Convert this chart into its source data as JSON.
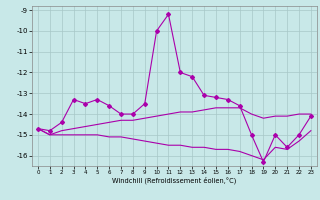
{
  "xlabel": "Windchill (Refroidissement éolien,°C)",
  "x": [
    0,
    1,
    2,
    3,
    4,
    5,
    6,
    7,
    8,
    9,
    10,
    11,
    12,
    13,
    14,
    15,
    16,
    17,
    18,
    19,
    20,
    21,
    22,
    23
  ],
  "line1": [
    -14.7,
    -14.8,
    -14.4,
    -13.3,
    -13.5,
    -13.3,
    -13.6,
    -14.0,
    -14.0,
    -13.5,
    -10.0,
    -9.2,
    -12.0,
    -12.2,
    -13.1,
    -13.2,
    -13.3,
    -13.6,
    -15.0,
    -16.3,
    -15.0,
    -15.6,
    -15.0,
    -14.1
  ],
  "line2": [
    -14.7,
    -15.0,
    -14.8,
    -14.7,
    -14.6,
    -14.5,
    -14.4,
    -14.3,
    -14.3,
    -14.2,
    -14.1,
    -14.0,
    -13.9,
    -13.9,
    -13.8,
    -13.7,
    -13.7,
    -13.7,
    -14.0,
    -14.2,
    -14.1,
    -14.1,
    -14.0,
    -14.0
  ],
  "line3": [
    -14.7,
    -15.0,
    -15.0,
    -15.0,
    -15.0,
    -15.0,
    -15.1,
    -15.1,
    -15.2,
    -15.3,
    -15.4,
    -15.5,
    -15.5,
    -15.6,
    -15.6,
    -15.7,
    -15.7,
    -15.8,
    -16.0,
    -16.2,
    -15.6,
    -15.7,
    -15.3,
    -14.8
  ],
  "bg_color": "#c8e8e8",
  "grid_color": "#a8c8c8",
  "line_color": "#aa00aa",
  "ylim": [
    -16.5,
    -8.8
  ],
  "xlim": [
    -0.5,
    23.5
  ],
  "yticks": [
    -16,
    -15,
    -14,
    -13,
    -12,
    -11,
    -10,
    -9
  ],
  "xticks": [
    0,
    1,
    2,
    3,
    4,
    5,
    6,
    7,
    8,
    9,
    10,
    11,
    12,
    13,
    14,
    15,
    16,
    17,
    18,
    19,
    20,
    21,
    22,
    23
  ]
}
